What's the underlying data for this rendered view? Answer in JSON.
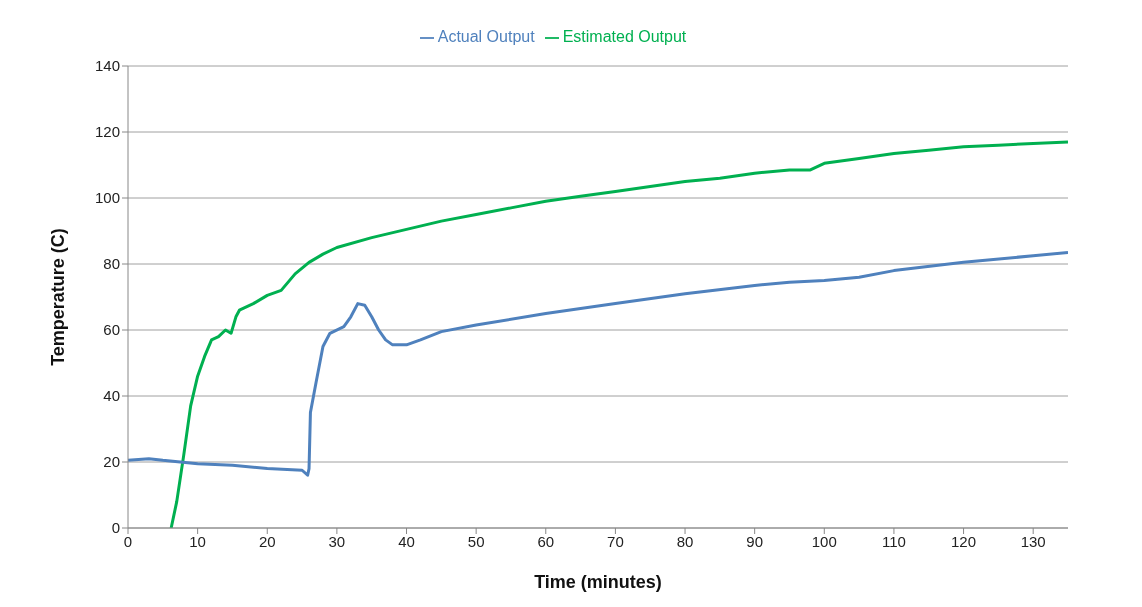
{
  "chart_data": {
    "type": "line",
    "xlabel": "Time (minutes)",
    "ylabel": "Temperature (C)",
    "xlim": [
      0,
      135
    ],
    "xticks": [
      0,
      10,
      20,
      30,
      40,
      50,
      60,
      70,
      80,
      90,
      100,
      110,
      120,
      130
    ],
    "ylim": [
      0,
      140
    ],
    "yticks": [
      0,
      20,
      40,
      60,
      80,
      100,
      120,
      140
    ],
    "grid": "y",
    "legend": "top",
    "marker": "none",
    "line_style": "solid",
    "series": [
      {
        "name": "Estimated Output",
        "color": "#00b050",
        "x": [
          6.2,
          7,
          8,
          9,
          10,
          11,
          12,
          13,
          14,
          14.8,
          15.5,
          16,
          18,
          20,
          22,
          24,
          26,
          28,
          30,
          35,
          40,
          45,
          50,
          55,
          60,
          65,
          70,
          75,
          80,
          85,
          90,
          95,
          98,
          100,
          105,
          110,
          115,
          120,
          125,
          130,
          135
        ],
        "values": [
          0,
          8,
          22,
          37,
          46,
          52,
          57,
          58,
          60,
          59,
          64,
          66,
          68,
          70.5,
          72,
          77,
          80.5,
          83,
          85,
          88,
          90.5,
          93,
          95,
          97,
          99,
          100.5,
          102,
          103.5,
          105,
          106,
          107.5,
          108.5,
          108.5,
          110.5,
          112,
          113.5,
          114.5,
          115.5,
          116,
          116.5,
          117
        ]
      },
      {
        "name": "Actual Output",
        "color": "#4f81bd",
        "x": [
          0,
          3,
          5,
          10,
          15,
          20,
          25,
          25.8,
          26,
          26.2,
          27,
          28,
          29,
          31,
          32,
          33,
          34,
          35,
          36,
          37,
          38,
          40,
          42,
          45,
          50,
          60,
          70,
          80,
          90,
          95,
          100,
          105,
          110,
          120,
          130,
          135
        ],
        "values": [
          20.5,
          21,
          20.5,
          19.5,
          19,
          18,
          17.5,
          16,
          18,
          35,
          44,
          55,
          59,
          61,
          64,
          68,
          67.5,
          64,
          60,
          57,
          55.5,
          55.5,
          57,
          59.5,
          61.5,
          65,
          68,
          71,
          73.5,
          74.5,
          75,
          76,
          78,
          80.5,
          82.5,
          83.5
        ]
      }
    ]
  }
}
